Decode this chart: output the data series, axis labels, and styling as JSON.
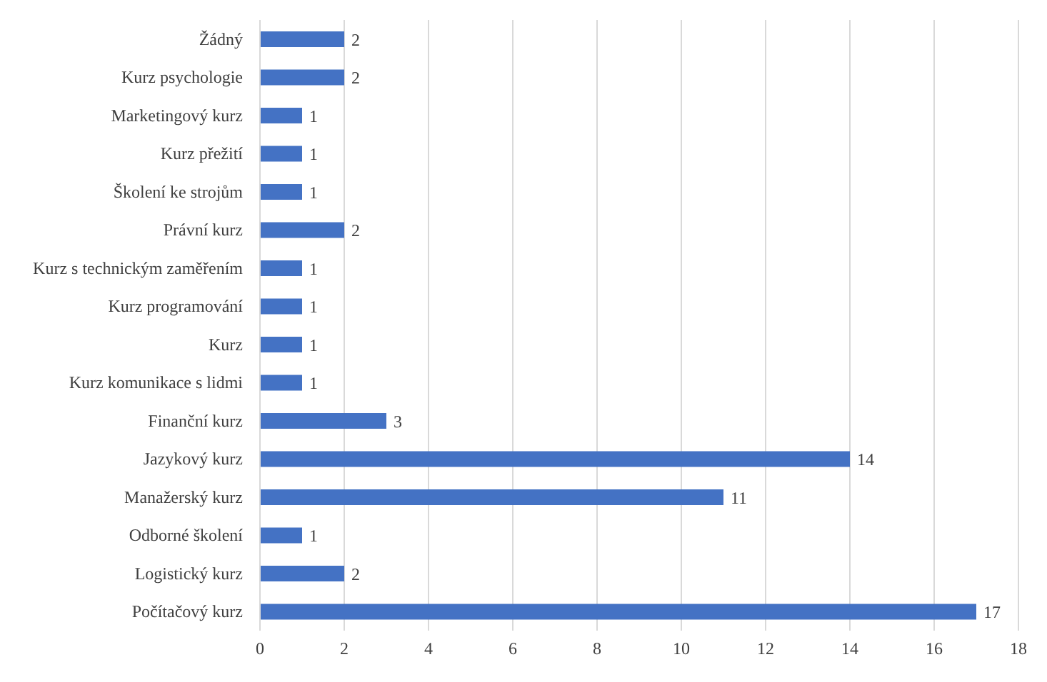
{
  "chart_data": {
    "type": "bar",
    "orientation": "horizontal",
    "categories": [
      "Žádný",
      "Kurz psychologie",
      "Marketingový kurz",
      "Kurz přežití",
      "Školení ke strojům",
      "Právní kurz",
      "Kurz s technickým zaměřením",
      "Kurz programování",
      "Kurz",
      "Kurz komunikace s lidmi",
      "Finanční kurz",
      "Jazykový kurz",
      "Manažerský kurz",
      "Odborné školení",
      "Logistický kurz",
      "Počítačový kurz"
    ],
    "values": [
      2,
      2,
      1,
      1,
      1,
      2,
      1,
      1,
      1,
      1,
      3,
      14,
      11,
      1,
      2,
      17
    ],
    "color": "#4472c4",
    "xlim": [
      0,
      18
    ],
    "xticks": [
      0,
      2,
      4,
      6,
      8,
      10,
      12,
      14,
      16,
      18
    ],
    "grid": "x",
    "data_labels": true
  }
}
